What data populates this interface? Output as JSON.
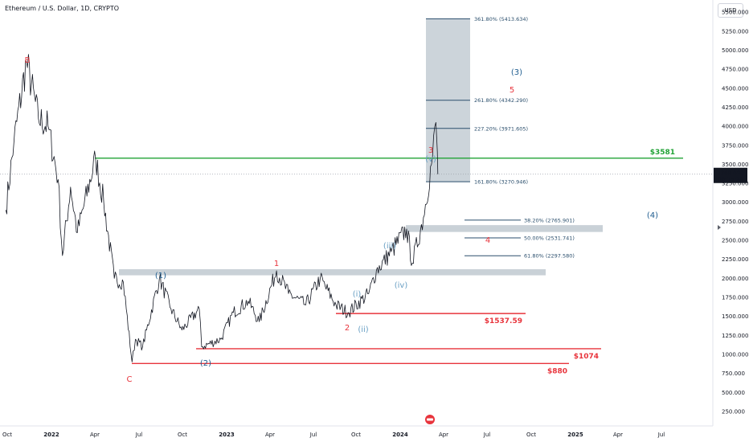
{
  "header": {
    "title": "Ethereum / U.S. Dollar, 1D, CRYPTO",
    "currency": "USD"
  },
  "chart_data": {
    "type": "line",
    "title": "Ethereum / U.S. Dollar, 1D, CRYPTO",
    "x_ticks": [
      "Oct",
      "2022",
      "Apr",
      "Jul",
      "Oct",
      "2023",
      "Apr",
      "Jul",
      "Oct",
      "2024",
      "Apr",
      "Jul",
      "Oct",
      "2025",
      "Apr",
      "Jul"
    ],
    "y_ticks": [
      "250.000",
      "500.000",
      "750.000",
      "1000.000",
      "1250.000",
      "1500.000",
      "1750.000",
      "2000.000",
      "2250.000",
      "2500.000",
      "2750.000",
      "3000.000",
      "3250.000",
      "3500.000",
      "3750.000",
      "4000.000",
      "4250.000",
      "4500.000",
      "4750.000",
      "5000.000",
      "5250.000",
      "5500.000"
    ],
    "ylim": [
      200,
      5620
    ],
    "grid": false,
    "series": [
      {
        "values": [
          [
            "2021-09-28",
            2900
          ],
          [
            "2021-10-15",
            3800
          ],
          [
            "2021-11-10",
            4850
          ],
          [
            "2021-12-05",
            4100
          ],
          [
            "2021-12-25",
            4000
          ],
          [
            "2022-01-15",
            3300
          ],
          [
            "2022-01-24",
            2300
          ],
          [
            "2022-02-10",
            3200
          ],
          [
            "2022-02-24",
            2600
          ],
          [
            "2022-04-03",
            3580
          ],
          [
            "2022-04-20",
            3000
          ],
          [
            "2022-05-12",
            2000
          ],
          [
            "2022-05-31",
            1950
          ],
          [
            "2022-06-18",
            900
          ],
          [
            "2022-06-25",
            1200
          ],
          [
            "2022-07-10",
            1100
          ],
          [
            "2022-08-14",
            2000
          ],
          [
            "2022-09-07",
            1600
          ],
          [
            "2022-09-30",
            1320
          ],
          [
            "2022-11-05",
            1600
          ],
          [
            "2022-11-10",
            1100
          ],
          [
            "2022-12-20",
            1200
          ],
          [
            "2023-01-15",
            1550
          ],
          [
            "2023-02-15",
            1700
          ],
          [
            "2023-03-10",
            1430
          ],
          [
            "2023-04-15",
            2100
          ],
          [
            "2023-05-10",
            1800
          ],
          [
            "2023-06-15",
            1650
          ],
          [
            "2023-07-15",
            2000
          ],
          [
            "2023-08-17",
            1650
          ],
          [
            "2023-09-11",
            1550
          ],
          [
            "2023-10-24",
            1800
          ],
          [
            "2023-11-09",
            2100
          ],
          [
            "2023-12-10",
            2350
          ],
          [
            "2024-01-11",
            2650
          ],
          [
            "2024-01-23",
            2200
          ],
          [
            "2024-02-15",
            2800
          ],
          [
            "2024-03-05",
            3600
          ],
          [
            "2024-03-12",
            4050
          ],
          [
            "2024-03-14",
            3800
          ],
          [
            "2024-03-16",
            3369.69
          ]
        ]
      }
    ],
    "annotations": {
      "last_price": "3369.690",
      "countdown": "06:15:38",
      "wave_labels_red": [
        "B",
        "C",
        "1",
        "2",
        "3",
        "4",
        "5"
      ],
      "wave_labels_blue": [
        "(1)",
        "(2)",
        "(3)",
        "(4)"
      ],
      "wave_labels_lightblue": [
        "(i)",
        "(ii)",
        "(iii)",
        "(iv)",
        "(v)"
      ],
      "fib_extension": [
        {
          "label": "361.80% (5413.634)",
          "value": 5413.634
        },
        {
          "label": "261.80% (4342.290)",
          "value": 4342.29
        },
        {
          "label": "227.20% (3971.605)",
          "value": 3971.605
        },
        {
          "label": "161.80% (3270.946)",
          "value": 3270.946
        }
      ],
      "fib_retracement": [
        {
          "label": "38.20% (2765.901)",
          "value": 2765.901
        },
        {
          "label": "50.00% (2531.741)",
          "value": 2531.741
        },
        {
          "label": "61.80% (2297.580)",
          "value": 2297.58
        }
      ],
      "horizontal_levels": [
        {
          "label": "$3581",
          "value": 3581,
          "color": "#21a336"
        },
        {
          "label": "$1537.59",
          "value": 1537.59,
          "color": "#e8343c"
        },
        {
          "label": "$1074",
          "value": 1074,
          "color": "#e8343c"
        },
        {
          "label": "$880",
          "value": 880,
          "color": "#e8343c"
        }
      ]
    }
  }
}
